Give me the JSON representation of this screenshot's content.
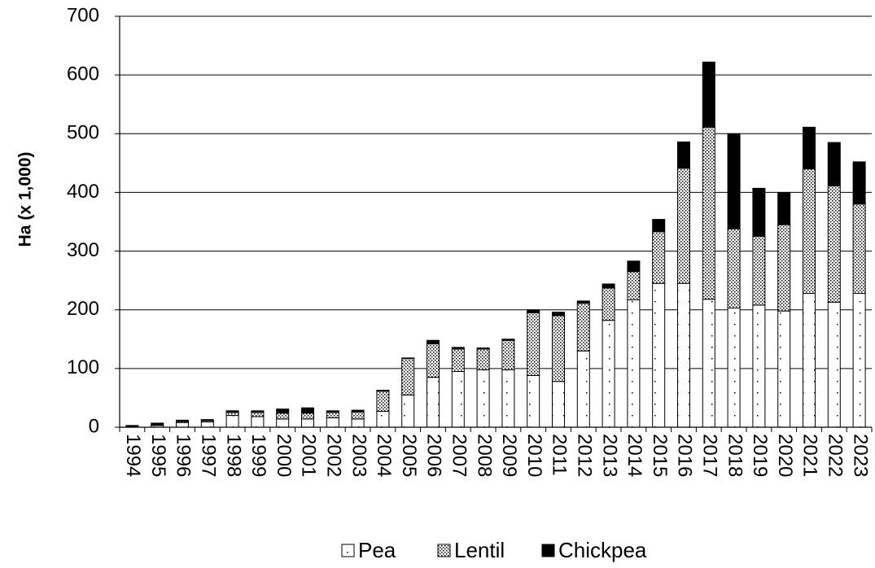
{
  "chart_data": {
    "type": "bar",
    "stacked": true,
    "categories": [
      "1994",
      "1995",
      "1996",
      "1997",
      "1998",
      "1999",
      "2000",
      "2001",
      "2002",
      "2003",
      "2004",
      "2005",
      "2006",
      "2007",
      "2008",
      "2009",
      "2010",
      "2011",
      "2012",
      "2013",
      "2014",
      "2015",
      "2016",
      "2017",
      "2018",
      "2019",
      "2020",
      "2021",
      "2022",
      "2023"
    ],
    "series": [
      {
        "name": "Pea",
        "pattern": "sparse-dots",
        "color": "#ffffff",
        "values": [
          1,
          3,
          8,
          9,
          20,
          18,
          14,
          14,
          16,
          14,
          27,
          55,
          85,
          95,
          98,
          98,
          88,
          78,
          130,
          182,
          217,
          245,
          245,
          218,
          203,
          208,
          198,
          228,
          213,
          228
        ]
      },
      {
        "name": "Lentil",
        "pattern": "dense-dots",
        "color": "#d9d9d9",
        "values": [
          0,
          1,
          2,
          2,
          5,
          7,
          10,
          10,
          9,
          12,
          34,
          62,
          57,
          38,
          35,
          50,
          107,
          112,
          81,
          55,
          48,
          88,
          196,
          293,
          135,
          117,
          147,
          212,
          198,
          152
        ]
      },
      {
        "name": "Chickpea",
        "pattern": "solid",
        "color": "#000000",
        "values": [
          2,
          3,
          2,
          2,
          3,
          3,
          7,
          9,
          3,
          3,
          2,
          1,
          6,
          3,
          2,
          2,
          5,
          6,
          4,
          7,
          18,
          21,
          45,
          111,
          162,
          82,
          55,
          71,
          74,
          72
        ]
      }
    ],
    "title": "",
    "xlabel": "",
    "ylabel": "Ha (x 1,000)",
    "ylim": [
      0,
      700
    ],
    "yticks": [
      0,
      100,
      200,
      300,
      400,
      500,
      600,
      700
    ],
    "grid": true,
    "legend": "bottom-center"
  }
}
